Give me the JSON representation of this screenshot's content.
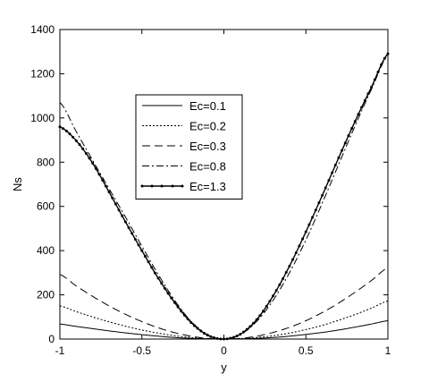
{
  "chart_data": {
    "type": "line",
    "title": "",
    "xlabel": "y",
    "ylabel": "Ns",
    "xlim": [
      -1,
      1
    ],
    "ylim": [
      0,
      1400
    ],
    "xticks": [
      -1,
      -0.5,
      0,
      0.5,
      1
    ],
    "yticks": [
      0,
      200,
      400,
      600,
      800,
      1000,
      1200,
      1400
    ],
    "xtick_labels": [
      "-1",
      "-0.5",
      "0",
      "0.5",
      "1"
    ],
    "ytick_labels": [
      "0",
      "200",
      "400",
      "600",
      "800",
      "1000",
      "1200",
      "1400"
    ],
    "grid": false,
    "legend_position": "upper-left-inside",
    "x": [
      -1.0,
      -0.9,
      -0.8,
      -0.7,
      -0.6,
      -0.5,
      -0.4,
      -0.3,
      -0.2,
      -0.1,
      0.0,
      0.1,
      0.2,
      0.3,
      0.4,
      0.5,
      0.6,
      0.7,
      0.8,
      0.9,
      1.0
    ],
    "series": [
      {
        "name": "Ec=0.1",
        "style": "solid",
        "values": [
          68,
          57,
          47,
          37,
          28,
          20,
          13,
          7,
          3,
          1,
          0,
          1,
          3,
          7,
          13,
          21,
          30,
          41,
          54,
          68,
          83
        ]
      },
      {
        "name": "Ec=0.2",
        "style": "dotted",
        "values": [
          150,
          124,
          100,
          78,
          58,
          41,
          27,
          15,
          7,
          2,
          0,
          2,
          7,
          15,
          27,
          43,
          62,
          85,
          111,
          140,
          172
        ]
      },
      {
        "name": "Ec=0.3",
        "style": "dashed",
        "values": [
          292,
          240,
          193,
          150,
          112,
          79,
          51,
          29,
          13,
          3,
          0,
          3,
          13,
          30,
          53,
          83,
          120,
          163,
          212,
          265,
          322
        ]
      },
      {
        "name": "Ec=0.8",
        "style": "dashdot",
        "values": [
          1070,
          938,
          808,
          680,
          552,
          420,
          292,
          175,
          80,
          20,
          0,
          20,
          80,
          175,
          300,
          448,
          615,
          790,
          965,
          1130,
          1285
        ]
      },
      {
        "name": "Ec=1.3",
        "style": "solid-dots",
        "values": [
          960,
          897,
          795,
          665,
          530,
          400,
          275,
          165,
          75,
          18,
          0,
          22,
          88,
          195,
          330,
          485,
          650,
          820,
          985,
          1140,
          1290
        ]
      }
    ]
  }
}
